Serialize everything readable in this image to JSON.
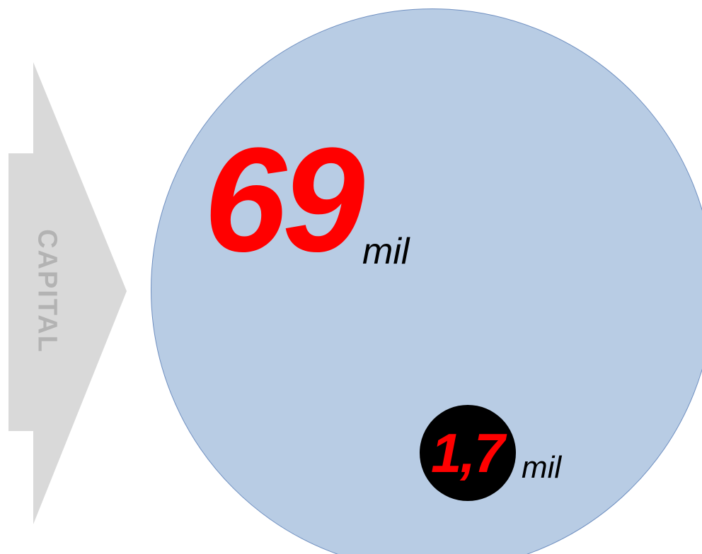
{
  "arrow": {
    "label": "CAPITAL",
    "color": "#d9d9d9",
    "text_color": "#b3b3b3"
  },
  "large_bubble": {
    "value": "69",
    "unit": "mil",
    "fill_color": "#b8cce4",
    "value_color": "#ff0000"
  },
  "small_bubble": {
    "value": "1,7",
    "unit": "mil",
    "fill_color": "#000000",
    "value_color": "#ff0000"
  }
}
